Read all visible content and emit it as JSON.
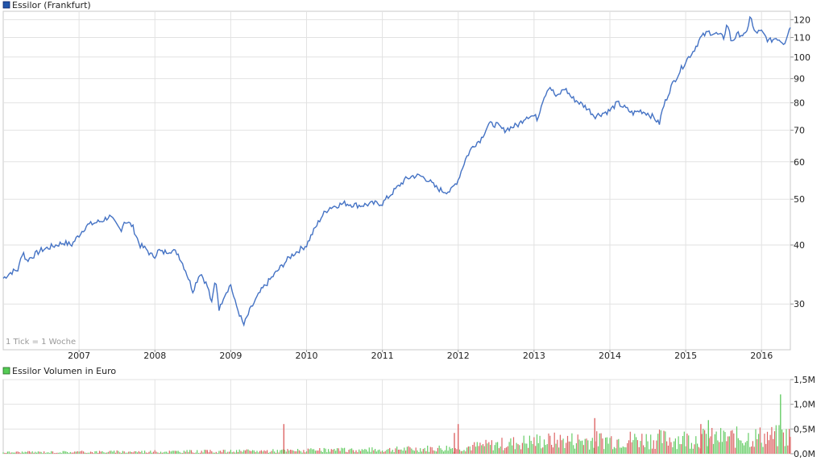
{
  "chart_data": [
    {
      "type": "line",
      "legend": "Essilor (Frankfurt)",
      "legend_placement": "top-left",
      "note": "1 Tick = 1 Woche",
      "grid": true,
      "y_scale": "log",
      "ylim": [
        24,
        125
      ],
      "xlim": [
        2006.0,
        2016.38
      ],
      "y_ticks": [
        30,
        40,
        50,
        60,
        70,
        80,
        90,
        100,
        110,
        120
      ],
      "x_ticks": [
        "2007",
        "2008",
        "2009",
        "2010",
        "2011",
        "2012",
        "2013",
        "2014",
        "2015",
        "2016"
      ],
      "line_color": "#4472c4",
      "series": [
        {
          "x": [
            2006.0,
            2006.1,
            2006.2,
            2006.26,
            2006.3,
            2006.4,
            2006.5,
            2006.6,
            2006.7,
            2006.8,
            2006.9,
            2007.0,
            2007.1,
            2007.2,
            2007.3,
            2007.4,
            2007.5,
            2007.55,
            2007.6,
            2007.7,
            2007.8,
            2007.9,
            2007.95,
            2008.0,
            2008.05,
            2008.1,
            2008.2,
            2008.3,
            2008.4,
            2008.5,
            2008.55,
            2008.6,
            2008.7,
            2008.75,
            2008.8,
            2008.85,
            2008.9,
            2009.0,
            2009.05,
            2009.1,
            2009.17,
            2009.25,
            2009.4,
            2009.6,
            2009.8,
            2010.0,
            2010.1,
            2010.2,
            2010.3,
            2010.5,
            2010.7,
            2010.9,
            2011.0,
            2011.1,
            2011.3,
            2011.4,
            2011.5,
            2011.6,
            2011.7,
            2011.8,
            2011.9,
            2012.0,
            2012.1,
            2012.2,
            2012.3,
            2012.4,
            2012.5,
            2012.6,
            2012.7,
            2012.8,
            2012.9,
            2013.0,
            2013.05,
            2013.1,
            2013.2,
            2013.3,
            2013.4,
            2013.5,
            2013.6,
            2013.7,
            2013.8,
            2013.9,
            2014.0,
            2014.1,
            2014.2,
            2014.3,
            2014.4,
            2014.5,
            2014.6,
            2014.65,
            2014.7,
            2014.8,
            2014.9,
            2015.0,
            2015.1,
            2015.2,
            2015.3,
            2015.4,
            2015.5,
            2015.55,
            2015.6,
            2015.7,
            2015.8,
            2015.85,
            2015.9,
            2016.0,
            2016.1,
            2016.2,
            2016.3,
            2016.38
          ],
          "y": [
            34,
            35,
            35.5,
            39,
            37,
            38,
            39,
            39.5,
            40,
            40.5,
            40,
            42,
            44,
            44.5,
            45,
            46,
            44,
            43,
            45,
            44,
            40,
            39,
            38,
            38,
            39,
            38.5,
            39,
            38.5,
            35.5,
            32,
            33.5,
            35,
            32.5,
            30,
            34,
            29,
            31,
            33,
            30.5,
            29,
            27,
            29,
            32,
            35,
            38,
            40,
            43,
            46,
            48,
            49,
            48.5,
            49,
            49,
            51,
            55,
            56,
            56,
            55,
            53,
            52,
            52,
            55,
            61,
            65,
            67,
            72,
            72,
            70,
            71,
            72,
            75,
            75,
            74,
            80,
            87,
            82,
            86,
            82,
            80,
            78,
            75,
            76,
            77,
            80,
            78,
            76,
            77,
            76,
            74,
            72,
            78,
            86,
            92,
            98,
            103,
            110,
            113,
            112,
            110,
            118,
            108,
            112,
            111,
            123,
            113,
            113,
            108,
            110,
            107,
            116
          ]
        }
      ]
    },
    {
      "type": "bar",
      "legend": "Essilor Volumen in Euro",
      "legend_placement": "top-left",
      "grid": true,
      "ylim": [
        0,
        1.5
      ],
      "xlim": [
        2006.0,
        2016.38
      ],
      "y_ticks": [
        "0,0M",
        "0,5M",
        "1,0M",
        "1,5M"
      ],
      "up_color": "#66cc66",
      "down_color": "#dd6666",
      "volume_profile": [
        {
          "year": 2006.0,
          "typical": 0.03
        },
        {
          "year": 2009.0,
          "typical": 0.05
        },
        {
          "year": 2011.0,
          "typical": 0.08
        },
        {
          "year": 2012.0,
          "typical": 0.12
        },
        {
          "year": 2013.0,
          "typical": 0.25
        },
        {
          "year": 2014.0,
          "typical": 0.28
        },
        {
          "year": 2015.0,
          "typical": 0.3
        },
        {
          "year": 2016.38,
          "typical": 0.35
        }
      ],
      "spikes": [
        {
          "x": 2009.7,
          "value": 0.6,
          "direction": "down"
        },
        {
          "x": 2011.95,
          "value": 0.42,
          "direction": "down"
        },
        {
          "x": 2012.0,
          "value": 0.6,
          "direction": "down"
        },
        {
          "x": 2013.8,
          "value": 0.72,
          "direction": "down"
        },
        {
          "x": 2015.2,
          "value": 0.6,
          "direction": "down"
        },
        {
          "x": 2015.3,
          "value": 0.68,
          "direction": "up"
        },
        {
          "x": 2016.25,
          "value": 1.2,
          "direction": "up"
        }
      ]
    }
  ]
}
